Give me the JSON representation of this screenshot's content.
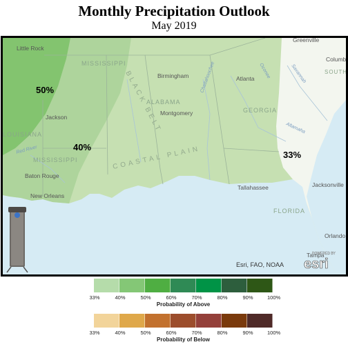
{
  "header": {
    "title": "Monthly Precipitation Outlook",
    "subtitle": "May 2019"
  },
  "map": {
    "outlook_labels": [
      "50%",
      "40%",
      "33%"
    ],
    "cities": [
      "Little Rock",
      "Greenville",
      "Columbia",
      "Birmingham",
      "Atlanta",
      "Montgomery",
      "Jackson",
      "Baton Rouge",
      "New Orleans",
      "Tallahassee",
      "Jacksonville",
      "Orlando",
      "Tampa"
    ],
    "states": [
      "MISSISSIPPI",
      "ALABAMA",
      "GEORGIA",
      "FLORIDA",
      "SOUTH CAROLINA",
      "LOUISIANA"
    ],
    "regions": [
      "BLACK BELT",
      "COASTAL PLAIN"
    ],
    "rivers": [
      "Chattahoochee",
      "Oconee",
      "Savannah",
      "Altamaha",
      "Red River"
    ],
    "attribution": "Esri, FAO, NOAA",
    "logo": {
      "powered_by": "POWERED BY",
      "brand": "esri"
    }
  },
  "legend_above": {
    "caption": "Probability of Above",
    "colors": [
      "#b5dcaa",
      "#84c776",
      "#4fae42",
      "#2f8a55",
      "#009346",
      "#2d5e3d",
      "#2e5716"
    ],
    "ticks": [
      "33%",
      "40%",
      "50%",
      "60%",
      "70%",
      "80%",
      "90%",
      "100%"
    ]
  },
  "legend_below": {
    "caption": "Probability of Below",
    "colors": [
      "#f2d49a",
      "#dfa84a",
      "#c2712e",
      "#9c4d2c",
      "#94403a",
      "#7a3a0c",
      "#4f2a28"
    ],
    "ticks": [
      "33%",
      "40%",
      "50%",
      "60%",
      "70%",
      "80%",
      "90%",
      "100%"
    ]
  }
}
